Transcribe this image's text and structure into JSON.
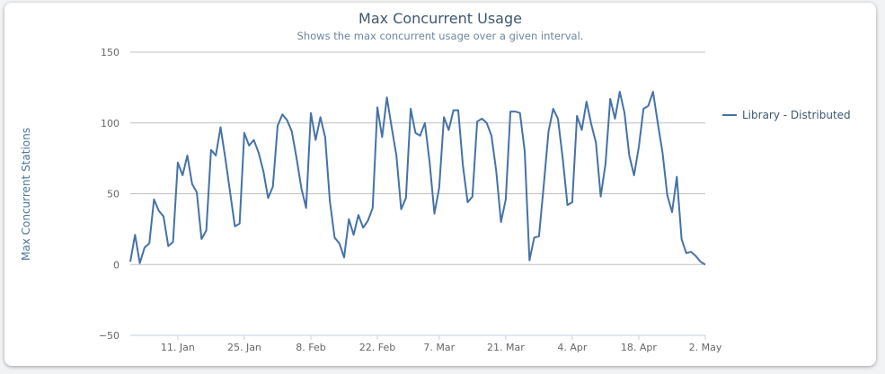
{
  "chart_data": {
    "type": "line",
    "title": "Max Concurrent Usage",
    "subtitle": "Shows the max concurrent usage over a given interval.",
    "ylabel": "Max Concurrent Stations",
    "xlabel": "",
    "ylim": [
      -50,
      150
    ],
    "yticks": [
      -50,
      0,
      50,
      100,
      150
    ],
    "grid": true,
    "legend_position": "right",
    "x_start": "2013-01-01",
    "x_end": "2013-05-02",
    "xticks": [
      {
        "label": "11. Jan",
        "date": "2013-01-11"
      },
      {
        "label": "25. Jan",
        "date": "2013-01-25"
      },
      {
        "label": "8. Feb",
        "date": "2013-02-08"
      },
      {
        "label": "22. Feb",
        "date": "2013-02-22"
      },
      {
        "label": "7. Mar",
        "date": "2013-03-07"
      },
      {
        "label": "21. Mar",
        "date": "2013-03-21"
      },
      {
        "label": "4. Apr",
        "date": "2013-04-04"
      },
      {
        "label": "18. Apr",
        "date": "2013-04-18"
      },
      {
        "label": "2. May",
        "date": "2013-05-02"
      }
    ],
    "series": [
      {
        "name": "Library - Distributed",
        "color": "#4572a7",
        "x": [
          "2013-01-01",
          "2013-01-02",
          "2013-01-03",
          "2013-01-04",
          "2013-01-05",
          "2013-01-06",
          "2013-01-07",
          "2013-01-08",
          "2013-01-09",
          "2013-01-10",
          "2013-01-11",
          "2013-01-12",
          "2013-01-13",
          "2013-01-14",
          "2013-01-15",
          "2013-01-16",
          "2013-01-17",
          "2013-01-18",
          "2013-01-19",
          "2013-01-20",
          "2013-01-21",
          "2013-01-22",
          "2013-01-23",
          "2013-01-24",
          "2013-01-25",
          "2013-01-26",
          "2013-01-27",
          "2013-01-28",
          "2013-01-29",
          "2013-01-30",
          "2013-01-31",
          "2013-02-01",
          "2013-02-02",
          "2013-02-03",
          "2013-02-04",
          "2013-02-05",
          "2013-02-06",
          "2013-02-07",
          "2013-02-08",
          "2013-02-09",
          "2013-02-10",
          "2013-02-11",
          "2013-02-12",
          "2013-02-13",
          "2013-02-14",
          "2013-02-15",
          "2013-02-16",
          "2013-02-17",
          "2013-02-18",
          "2013-02-19",
          "2013-02-20",
          "2013-02-21",
          "2013-02-22",
          "2013-02-23",
          "2013-02-24",
          "2013-02-25",
          "2013-02-26",
          "2013-02-27",
          "2013-02-28",
          "2013-03-01",
          "2013-03-02",
          "2013-03-03",
          "2013-03-04",
          "2013-03-05",
          "2013-03-06",
          "2013-03-07",
          "2013-03-08",
          "2013-03-09",
          "2013-03-10",
          "2013-03-11",
          "2013-03-12",
          "2013-03-13",
          "2013-03-14",
          "2013-03-15",
          "2013-03-16",
          "2013-03-17",
          "2013-03-18",
          "2013-03-19",
          "2013-03-20",
          "2013-03-21",
          "2013-03-22",
          "2013-03-23",
          "2013-03-24",
          "2013-03-25",
          "2013-03-26",
          "2013-03-27",
          "2013-03-28",
          "2013-03-29",
          "2013-03-30",
          "2013-03-31",
          "2013-04-01",
          "2013-04-02",
          "2013-04-03",
          "2013-04-04",
          "2013-04-05",
          "2013-04-06",
          "2013-04-07",
          "2013-04-08",
          "2013-04-09",
          "2013-04-10",
          "2013-04-11",
          "2013-04-12",
          "2013-04-13",
          "2013-04-14",
          "2013-04-15",
          "2013-04-16",
          "2013-04-17",
          "2013-04-18",
          "2013-04-19",
          "2013-04-20",
          "2013-04-21",
          "2013-04-22",
          "2013-04-23",
          "2013-04-24",
          "2013-04-25",
          "2013-04-26",
          "2013-04-27",
          "2013-04-28",
          "2013-04-29",
          "2013-04-30",
          "2013-05-01",
          "2013-05-02"
        ],
        "values": [
          2,
          21,
          1,
          12,
          15,
          46,
          38,
          34,
          13,
          16,
          72,
          63,
          77,
          57,
          51,
          18,
          24,
          81,
          77,
          97,
          75,
          51,
          27,
          29,
          93,
          84,
          88,
          79,
          66,
          47,
          55,
          98,
          106,
          102,
          94,
          75,
          54,
          40,
          107,
          88,
          104,
          90,
          45,
          19,
          15,
          5,
          32,
          21,
          35,
          26,
          31,
          40,
          111,
          90,
          118,
          97,
          77,
          39,
          47,
          110,
          93,
          91,
          100,
          72,
          36,
          54,
          104,
          95,
          109,
          109,
          70,
          44,
          48,
          101,
          103,
          100,
          91,
          66,
          30,
          46,
          108,
          108,
          107,
          80,
          3,
          19,
          20,
          56,
          94,
          110,
          103,
          75,
          42,
          44,
          105,
          95,
          115,
          99,
          86,
          48,
          71,
          117,
          103,
          122,
          107,
          77,
          63,
          83,
          110,
          112,
          122,
          100,
          79,
          49,
          37,
          62,
          18,
          8,
          9,
          6,
          2,
          0
        ]
      }
    ]
  }
}
